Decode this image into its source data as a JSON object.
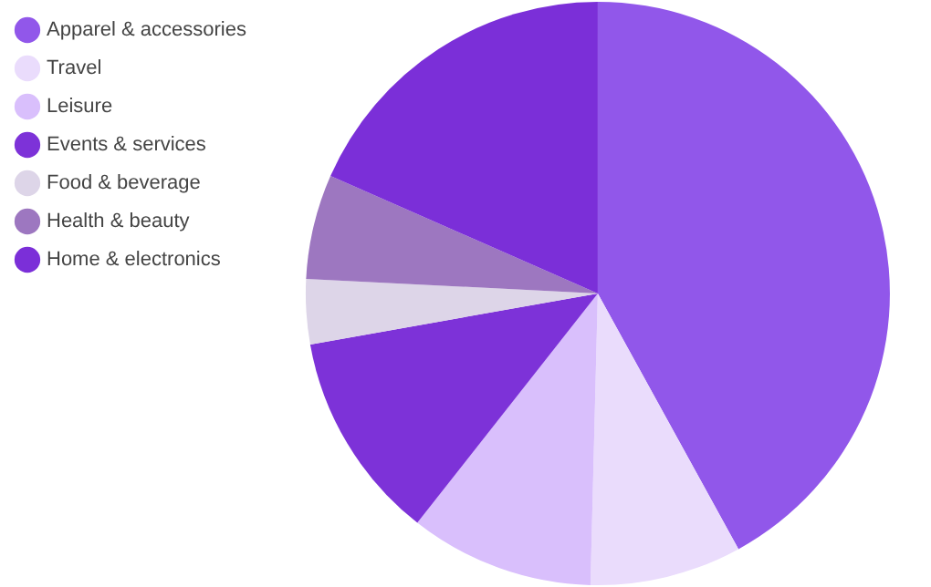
{
  "chart_data": {
    "type": "pie",
    "categories": [
      "Apparel & accessories",
      "Travel",
      "Leisure",
      "Events & services",
      "Food & beverage",
      "Health & beauty",
      "Home & electronics"
    ],
    "values": [
      42,
      8.4,
      10.2,
      11.6,
      3.6,
      5.8,
      18.4
    ],
    "colors": [
      "#9157ea",
      "#eadcfc",
      "#d9bffc",
      "#7d32d8",
      "#ddd5e8",
      "#9d77c0",
      "#7b2fd8"
    ],
    "legend": "top left"
  }
}
